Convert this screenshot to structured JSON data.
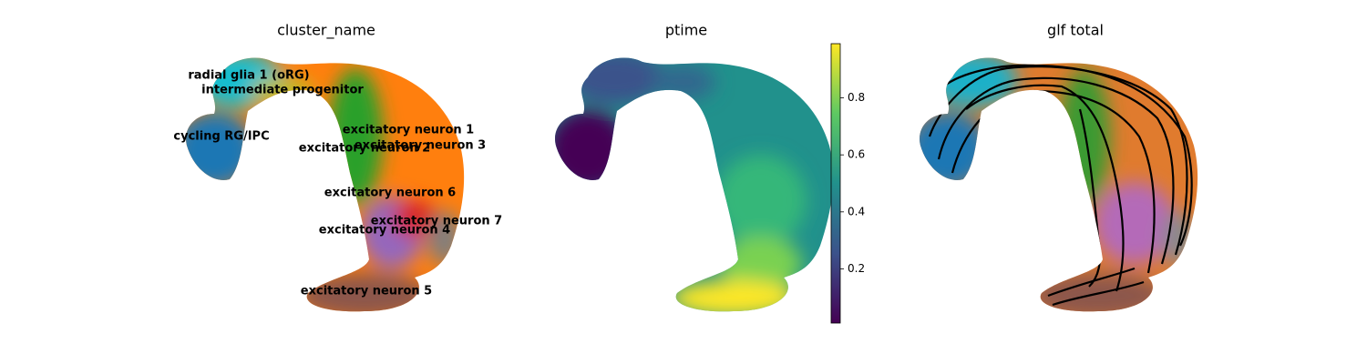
{
  "panels": [
    {
      "title": "cluster_name",
      "labels": [
        "radial glia 1 (oRG)",
        "intermediate progenitor",
        "cycling RG/IPC",
        "excitatory neuron 1",
        "excitatory neuron 2",
        "excitatory neuron 3",
        "excitatory neuron 6",
        "excitatory neuron 7",
        "excitatory neuron 4",
        "excitatory neuron 5"
      ]
    },
    {
      "title": "ptime",
      "colorbar": {
        "lim": [
          0.01,
          0.99
        ],
        "ticks": [
          0.2,
          0.4,
          0.6,
          0.8
        ]
      }
    },
    {
      "title": "glf total"
    }
  ]
}
